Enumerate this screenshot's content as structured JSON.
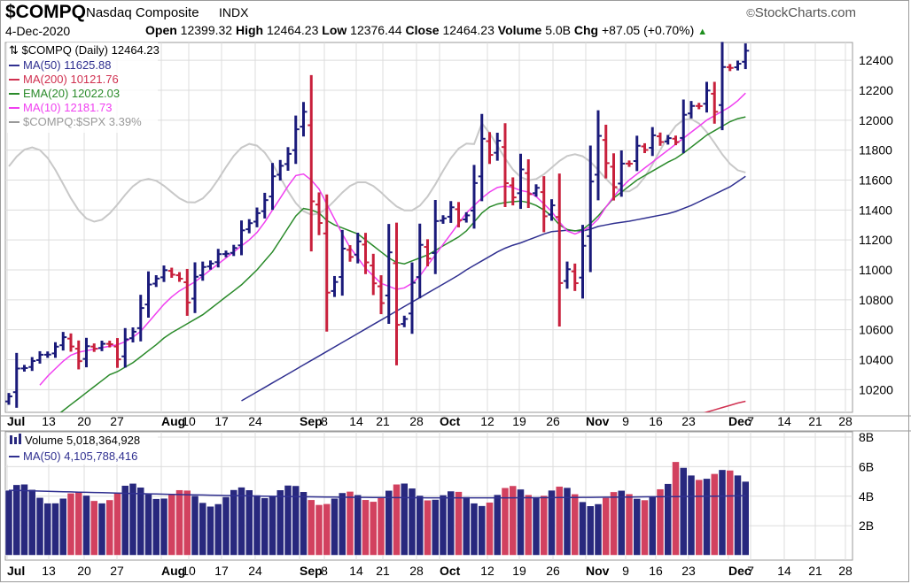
{
  "header": {
    "symbol": "$COMPQ",
    "company": "Nasdaq Composite",
    "exchange": "INDX",
    "date": "4-Dec-2020",
    "open_label": "Open",
    "open": "12399.32",
    "high_label": "High",
    "high": "12464.23",
    "low_label": "Low",
    "low": "12376.44",
    "close_label": "Close",
    "close": "12464.23",
    "volume_label": "Volume",
    "volume": "5.0B",
    "chg_label": "Chg",
    "chg": "+87.05 (+0.70%)",
    "watermark": "StockCharts.com",
    "watermark_copy": "©"
  },
  "colors": {
    "up_bar": "#1a1a7a",
    "down_bar": "#c8203c",
    "ma50": "#303090",
    "ma200": "#d03050",
    "ema20": "#2a8a2a",
    "ma10": "#f040f0",
    "relative": "#c8c8c8",
    "grid": "#dcdcdc",
    "vol_up": "#28287e",
    "vol_down": "#d2415f"
  },
  "chart_data": [
    {
      "type": "ohlc",
      "legend_title": "$COMPQ (Daily) 12464.23",
      "ylim": [
        10000,
        12500
      ],
      "y_ticks": [
        "10200",
        "10400",
        "10600",
        "10800",
        "11000",
        "11200",
        "11400",
        "11600",
        "11800",
        "12000",
        "12200",
        "12400"
      ],
      "x_ticks": [
        "Jul",
        "13",
        "20",
        "27",
        "Aug",
        "10",
        "17",
        "24",
        "Sep",
        "8",
        "14",
        "21",
        "28",
        "Oct",
        "12",
        "19",
        "26",
        "Nov",
        "9",
        "16",
        "23",
        "Dec",
        "7",
        "14",
        "21",
        "28"
      ],
      "grid": true,
      "legend_placement": "top-left",
      "series": [
        {
          "name": "MA(50) 11625.88",
          "key": "ma50"
        },
        {
          "name": "MA(200) 10121.76",
          "key": "ma200"
        },
        {
          "name": "EMA(20) 12022.03",
          "key": "ema20"
        },
        {
          "name": "MA(10) 12181.73",
          "key": "ma10"
        },
        {
          "name": "$COMPQ:$SPX 3.39%",
          "key": "relative"
        }
      ],
      "closes": [
        10155,
        10341,
        10344,
        10391,
        10433,
        10434,
        10487,
        10550,
        10488,
        10390,
        10490,
        10473,
        10506,
        10503,
        10402,
        10536,
        10587,
        10745,
        10902,
        10942,
        10998,
        10968,
        10941,
        10782,
        10954,
        11019,
        11042,
        11105,
        11108,
        11146,
        11264,
        11312,
        11379,
        11466,
        11625,
        11695,
        11775,
        11939,
        12056,
        11458,
        11313,
        10848,
        10919,
        11142,
        11086,
        11190,
        11050,
        10910,
        10778,
        11117,
        10633,
        10672,
        10914,
        11167,
        11075,
        11326,
        11344,
        11418,
        11332,
        11364,
        11580,
        11876,
        11768,
        11863,
        11579,
        11484,
        11671,
        11506,
        11548,
        11358,
        11431,
        10912,
        11004,
        10911,
        11161,
        11590,
        11895,
        11713,
        11553,
        11710,
        11709,
        11829,
        11801,
        11899,
        11854,
        11880,
        11854,
        12036,
        12095,
        12094,
        12198,
        12056,
        12355,
        12349,
        12377,
        12464
      ],
      "ma50": [
        null,
        null,
        null,
        null,
        null,
        null,
        null,
        null,
        null,
        null,
        null,
        null,
        null,
        null,
        null,
        null,
        null,
        null,
        null,
        null,
        null,
        null,
        null,
        null,
        null,
        null,
        null,
        null,
        null,
        null,
        10125,
        10155,
        10185,
        10215,
        10245,
        10275,
        10305,
        10335,
        10365,
        10395,
        10425,
        10455,
        10485,
        10515,
        10545,
        10575,
        10605,
        10635,
        10665,
        10695,
        10725,
        10755,
        10785,
        10815,
        10845,
        10875,
        10905,
        10935,
        10965,
        11000,
        11030,
        11060,
        11090,
        11120,
        11145,
        11165,
        11180,
        11200,
        11220,
        11240,
        11255,
        11260,
        11265,
        11262,
        11260,
        11272,
        11290,
        11300,
        11310,
        11318,
        11325,
        11335,
        11345,
        11355,
        11365,
        11375,
        11390,
        11410,
        11430,
        11455,
        11480,
        11505,
        11530,
        11555,
        11590,
        11625
      ],
      "ma200": [
        null,
        null,
        null,
        null,
        null,
        null,
        null,
        null,
        null,
        null,
        null,
        null,
        null,
        null,
        null,
        null,
        null,
        null,
        null,
        null,
        null,
        null,
        null,
        null,
        null,
        null,
        null,
        null,
        null,
        null,
        null,
        null,
        null,
        null,
        null,
        null,
        null,
        null,
        null,
        null,
        null,
        null,
        null,
        null,
        null,
        null,
        null,
        null,
        null,
        null,
        null,
        null,
        null,
        null,
        null,
        null,
        null,
        null,
        null,
        null,
        null,
        null,
        null,
        null,
        null,
        null,
        null,
        null,
        null,
        null,
        null,
        null,
        null,
        null,
        null,
        null,
        null,
        null,
        null,
        null,
        null,
        null,
        null,
        null,
        null,
        null,
        9990,
        10005,
        10020,
        10035,
        10050,
        10065,
        10080,
        10095,
        10110,
        10122
      ],
      "ema20": [
        null,
        null,
        null,
        null,
        null,
        null,
        10020,
        10060,
        10100,
        10140,
        10180,
        10220,
        10260,
        10300,
        10320,
        10350,
        10380,
        10420,
        10460,
        10500,
        10545,
        10580,
        10610,
        10640,
        10670,
        10700,
        10740,
        10780,
        10820,
        10860,
        10900,
        10950,
        11000,
        11060,
        11120,
        11200,
        11280,
        11360,
        11410,
        11400,
        11380,
        11330,
        11300,
        11280,
        11260,
        11240,
        11200,
        11160,
        11120,
        11080,
        11050,
        11040,
        11060,
        11080,
        11100,
        11130,
        11160,
        11190,
        11220,
        11260,
        11320,
        11380,
        11420,
        11440,
        11450,
        11455,
        11460,
        11450,
        11430,
        11400,
        11360,
        11300,
        11270,
        11260,
        11270,
        11310,
        11360,
        11420,
        11480,
        11520,
        11560,
        11600,
        11630,
        11660,
        11690,
        11720,
        11745,
        11780,
        11820,
        11860,
        11900,
        11930,
        11960,
        11990,
        12010,
        12022
      ],
      "ma10": [
        null,
        null,
        null,
        null,
        10230,
        10290,
        10340,
        10390,
        10430,
        10450,
        10460,
        10470,
        10480,
        10490,
        10500,
        10520,
        10550,
        10590,
        10650,
        10710,
        10770,
        10820,
        10860,
        10890,
        10920,
        10960,
        11000,
        11040,
        11080,
        11120,
        11160,
        11200,
        11250,
        11320,
        11400,
        11480,
        11560,
        11630,
        11640,
        11600,
        11540,
        11440,
        11340,
        11240,
        11150,
        11080,
        11010,
        10960,
        10910,
        10890,
        10870,
        10880,
        10910,
        10960,
        11030,
        11100,
        11170,
        11240,
        11310,
        11380,
        11430,
        11480,
        11520,
        11550,
        11560,
        11550,
        11530,
        11520,
        11490,
        11440,
        11390,
        11320,
        11260,
        11240,
        11260,
        11290,
        11340,
        11420,
        11490,
        11550,
        11600,
        11640,
        11680,
        11720,
        11760,
        11800,
        11840,
        11880,
        11920,
        11960,
        12000,
        12030,
        12060,
        12090,
        12130,
        12181
      ]
    },
    {
      "type": "bar",
      "legend_title": "Volume 5,018,364,928",
      "series_name": "MA(50) 4,105,788,416",
      "ylim": [
        0,
        8.5
      ],
      "y_ticks": [
        "2B",
        "4B",
        "6B",
        "8B"
      ],
      "y_unit": "billions",
      "grid": true
    }
  ]
}
